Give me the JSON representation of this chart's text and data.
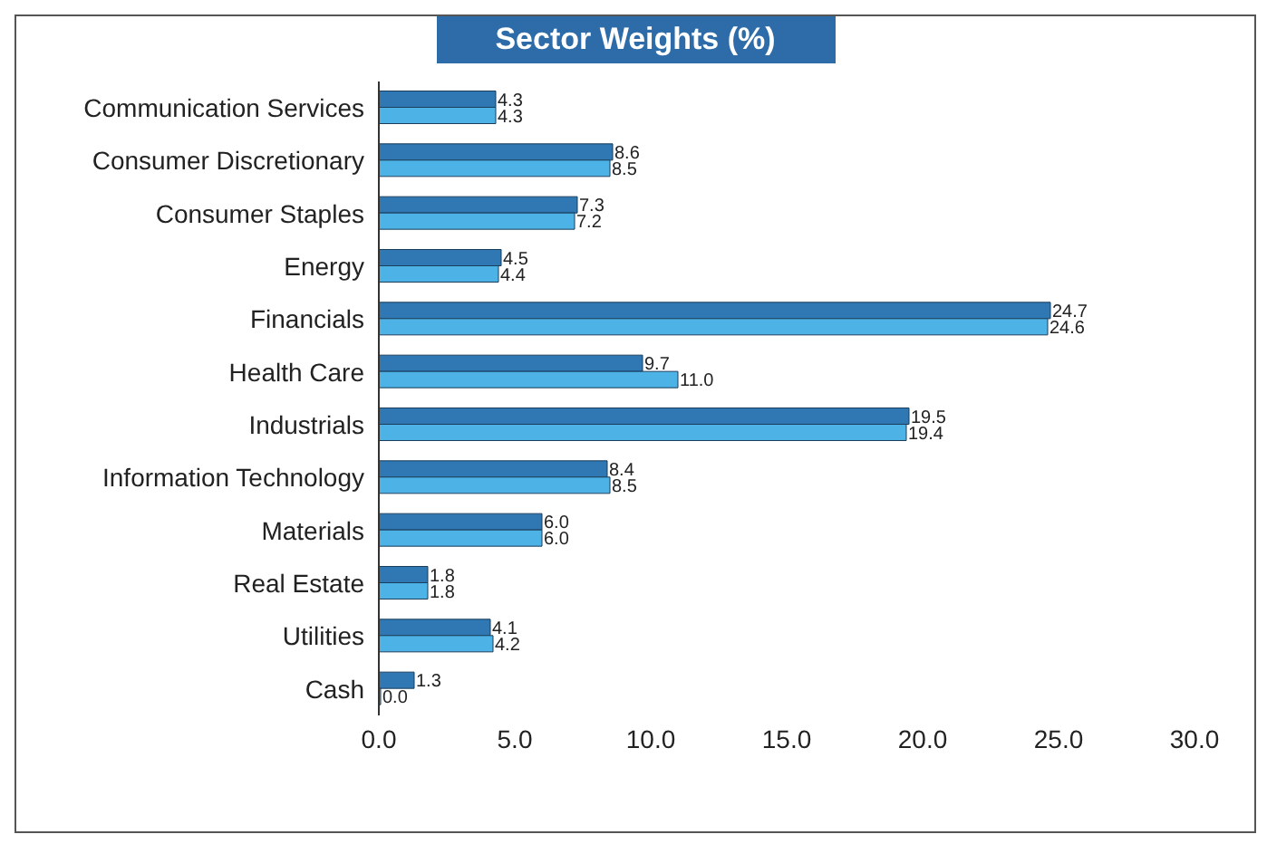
{
  "chart_data": {
    "type": "bar",
    "orientation": "horizontal",
    "title": "Sector Weights (%)",
    "categories": [
      "Communication Services",
      "Consumer Discretionary",
      "Consumer Staples",
      "Energy",
      "Financials",
      "Health Care",
      "Industrials",
      "Information Technology",
      "Materials",
      "Real Estate",
      "Utilities",
      "Cash"
    ],
    "series": [
      {
        "color": "#2f78b4",
        "values": [
          4.3,
          8.6,
          7.3,
          4.5,
          24.7,
          9.7,
          19.5,
          8.4,
          6.0,
          1.8,
          4.1,
          1.3
        ],
        "value_labels": [
          "4.3",
          "8.6",
          "7.3",
          "4.5",
          "24.7",
          "9.7",
          "19.5",
          "8.4",
          "6.0",
          "1.8",
          "4.1",
          "1.3"
        ]
      },
      {
        "color": "#4db3e6",
        "values": [
          4.3,
          8.5,
          7.2,
          4.4,
          24.6,
          11.0,
          19.4,
          8.5,
          6.0,
          1.8,
          4.2,
          0.0
        ],
        "value_labels": [
          "4.3",
          "8.5",
          "7.2",
          "4.4",
          "24.6",
          "11.0",
          "19.4",
          "8.5",
          "6.0",
          "1.8",
          "4.2",
          "0.0"
        ]
      }
    ],
    "xlim": [
      0,
      30
    ],
    "xticks": [
      {
        "value": 0,
        "label": "0.0"
      },
      {
        "value": 5,
        "label": "5.0"
      },
      {
        "value": 10,
        "label": "10.0"
      },
      {
        "value": 15,
        "label": "15.0"
      },
      {
        "value": 20,
        "label": "20.0"
      },
      {
        "value": 25,
        "label": "25.0"
      },
      {
        "value": 30,
        "label": "30.0"
      }
    ],
    "grid": false,
    "legend": false
  }
}
